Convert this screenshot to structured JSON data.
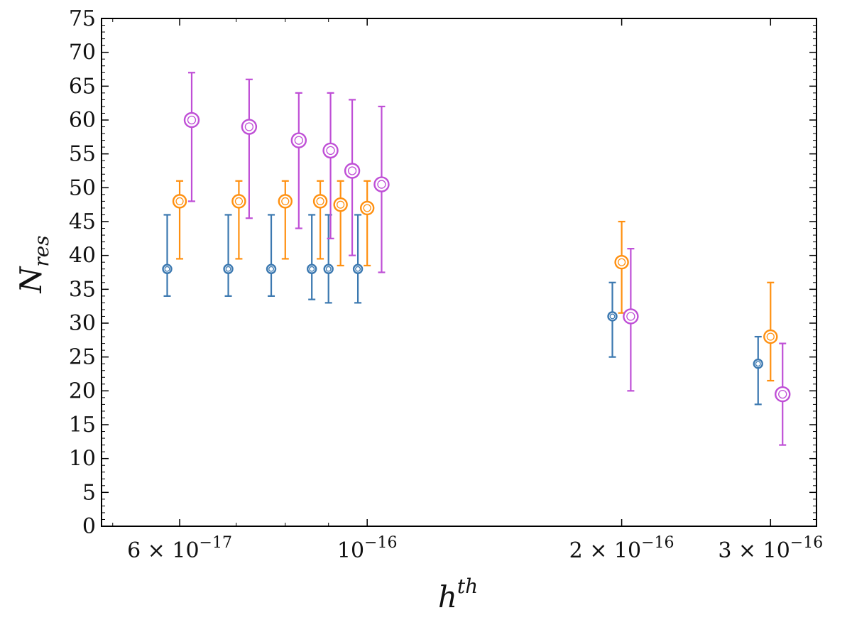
{
  "chart_data": {
    "type": "scatter",
    "title": "",
    "xlabel": {
      "base": "h",
      "sup": "th"
    },
    "ylabel": {
      "base": "N",
      "sub": "res"
    },
    "xscale": "log",
    "xlim": [
      4.85e-17,
      3.4e-16
    ],
    "ylim": [
      0,
      75
    ],
    "grid": false,
    "legend": "none",
    "y_ticks": [
      0,
      5,
      10,
      15,
      20,
      25,
      30,
      35,
      40,
      45,
      50,
      55,
      60,
      65,
      70,
      75
    ],
    "x_ticks": [
      {
        "value": 6e-17,
        "mantissa": "6 × 10",
        "exp": "−17"
      },
      {
        "value": 1e-16,
        "mantissa": "10",
        "exp": "−16"
      },
      {
        "value": 2e-16,
        "mantissa": "2 × 10",
        "exp": "−16"
      },
      {
        "value": 3e-16,
        "mantissa": "3 × 10",
        "exp": "−16"
      }
    ],
    "series": [
      {
        "name": "series-blue",
        "color": "#3b78b0",
        "marker_size": "small",
        "points": [
          {
            "x": 5.8e-17,
            "y": 38,
            "yerr_low": 34,
            "yerr_high": 46
          },
          {
            "x": 6.85e-17,
            "y": 38,
            "yerr_low": 34,
            "yerr_high": 46
          },
          {
            "x": 7.7e-17,
            "y": 38,
            "yerr_low": 34,
            "yerr_high": 46
          },
          {
            "x": 8.6e-17,
            "y": 38,
            "yerr_low": 33.5,
            "yerr_high": 46
          },
          {
            "x": 9e-17,
            "y": 38,
            "yerr_low": 33,
            "yerr_high": 46
          },
          {
            "x": 9.75e-17,
            "y": 38,
            "yerr_low": 33,
            "yerr_high": 46
          },
          {
            "x": 1.95e-16,
            "y": 31,
            "yerr_low": 25,
            "yerr_high": 36
          },
          {
            "x": 2.9e-16,
            "y": 24,
            "yerr_low": 18,
            "yerr_high": 28
          }
        ]
      },
      {
        "name": "series-orange",
        "color": "#ff9010",
        "marker_size": "medium",
        "points": [
          {
            "x": 6e-17,
            "y": 48,
            "yerr_low": 39.5,
            "yerr_high": 51
          },
          {
            "x": 7.05e-17,
            "y": 48,
            "yerr_low": 39.5,
            "yerr_high": 51
          },
          {
            "x": 8e-17,
            "y": 48,
            "yerr_low": 39.5,
            "yerr_high": 51
          },
          {
            "x": 8.8e-17,
            "y": 48,
            "yerr_low": 39.5,
            "yerr_high": 51
          },
          {
            "x": 9.3e-17,
            "y": 47.5,
            "yerr_low": 38.5,
            "yerr_high": 51
          },
          {
            "x": 1e-16,
            "y": 47,
            "yerr_low": 38.5,
            "yerr_high": 51
          },
          {
            "x": 2e-16,
            "y": 39,
            "yerr_low": 31.5,
            "yerr_high": 45
          },
          {
            "x": 3e-16,
            "y": 28,
            "yerr_low": 21.5,
            "yerr_high": 36
          }
        ]
      },
      {
        "name": "series-purple",
        "color": "#bf4fd6",
        "marker_size": "large",
        "points": [
          {
            "x": 6.2e-17,
            "y": 60,
            "yerr_low": 48,
            "yerr_high": 67
          },
          {
            "x": 7.25e-17,
            "y": 59,
            "yerr_low": 45.5,
            "yerr_high": 66
          },
          {
            "x": 8.3e-17,
            "y": 57,
            "yerr_low": 44,
            "yerr_high": 64
          },
          {
            "x": 9.05e-17,
            "y": 55.5,
            "yerr_low": 42.5,
            "yerr_high": 64
          },
          {
            "x": 9.6e-17,
            "y": 52.5,
            "yerr_low": 40,
            "yerr_high": 63
          },
          {
            "x": 1.04e-16,
            "y": 50.5,
            "yerr_low": 37.5,
            "yerr_high": 62
          },
          {
            "x": 2.05e-16,
            "y": 31,
            "yerr_low": 20,
            "yerr_high": 41
          },
          {
            "x": 3.1e-16,
            "y": 19.5,
            "yerr_low": 12,
            "yerr_high": 27
          }
        ]
      }
    ]
  }
}
